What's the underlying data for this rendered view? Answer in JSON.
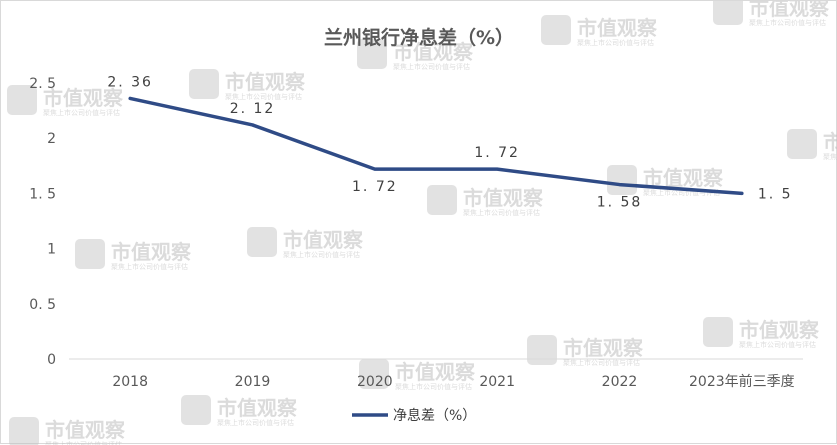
{
  "chart_data": {
    "type": "line",
    "title": "兰州银行净息差（%）",
    "categories": [
      "2018",
      "2019",
      "2020",
      "2021",
      "2022",
      "2023年前三季度"
    ],
    "series": [
      {
        "name": "净息差（%）",
        "values": [
          2.36,
          2.12,
          1.72,
          1.72,
          1.58,
          1.5
        ],
        "labels": [
          "2. 36",
          "2. 12",
          "1. 72",
          "1. 72",
          "1. 58",
          "1. 5"
        ],
        "color": "#2f4b86"
      }
    ],
    "yticks": [
      "0",
      "0. 5",
      "1",
      "1. 5",
      "2",
      "2. 5"
    ],
    "ylim": [
      0,
      2.5
    ],
    "grid": false,
    "legend": "bottom-center"
  },
  "watermark": {
    "title": "市值观察",
    "subtitle": "聚焦上市公司价值与评估",
    "color": "#bfbfbf"
  }
}
